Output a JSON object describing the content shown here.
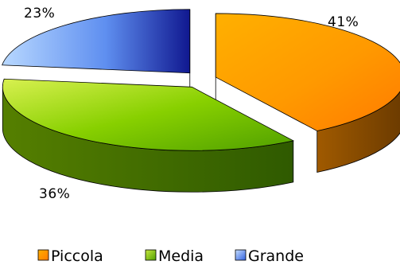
{
  "chart_data": {
    "type": "pie",
    "style": "3d-exploded",
    "categories": [
      "Piccola",
      "Media",
      "Grande"
    ],
    "values": [
      41,
      36,
      23
    ],
    "value_labels": [
      "41%",
      "36%",
      "23%"
    ],
    "colors": [
      "#ff9900",
      "#66cc00",
      "#5b9bff"
    ],
    "legend": {
      "placement": "bottom",
      "entries": [
        "Piccola",
        "Media",
        "Grande"
      ]
    }
  }
}
